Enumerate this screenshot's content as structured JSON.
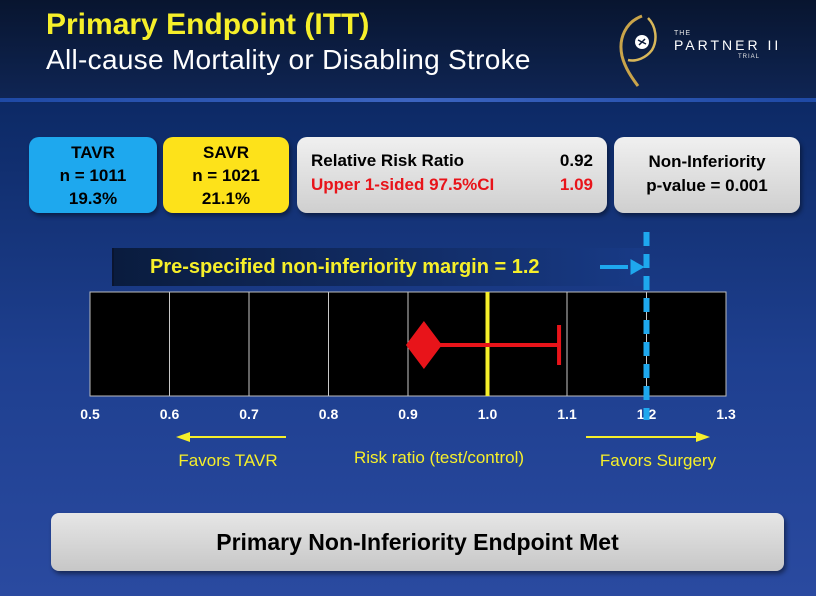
{
  "header": {
    "title": "Primary Endpoint (ITT)",
    "subtitle": "All-cause Mortality or Disabling Stroke"
  },
  "logo": {
    "the": "THE",
    "name": "PARTNER II",
    "trial": "TRIAL"
  },
  "tavr": {
    "label": "TAVR",
    "n": "n = 1011",
    "pct": "19.3%"
  },
  "savr": {
    "label": "SAVR",
    "n": "n = 1021",
    "pct": "21.1%"
  },
  "risk": {
    "rr_label": "Relative Risk Ratio",
    "rr_value": "0.92",
    "upper_label": "Upper 1-sided 97.5%CI",
    "upper_value": "1.09"
  },
  "noninf": {
    "line1": "Non-Inferiority",
    "line2": "p-value = 0.001"
  },
  "margin_text": "Pre-specified non-inferiority margin = 1.2",
  "footer": "Primary Non-Inferiority Endpoint Met",
  "colors": {
    "yellow": "#f6ef2a",
    "red": "#e8141a",
    "blue": "#1ea8ee",
    "gray": "#d9d9d9"
  },
  "chart_data": {
    "type": "forest",
    "xlim": [
      0.5,
      1.3
    ],
    "ticks": [
      "0.5",
      "0.6",
      "0.7",
      "0.8",
      "0.9",
      "1.0",
      "1.1",
      "1.2",
      "1.3"
    ],
    "point_estimate": 0.92,
    "ci_upper": 1.09,
    "reference_line": 1.0,
    "margin": 1.2,
    "xlabel": "Risk ratio (test/control)",
    "left_annotation": "Favors TAVR",
    "right_annotation": "Favors Surgery",
    "grid": true
  }
}
